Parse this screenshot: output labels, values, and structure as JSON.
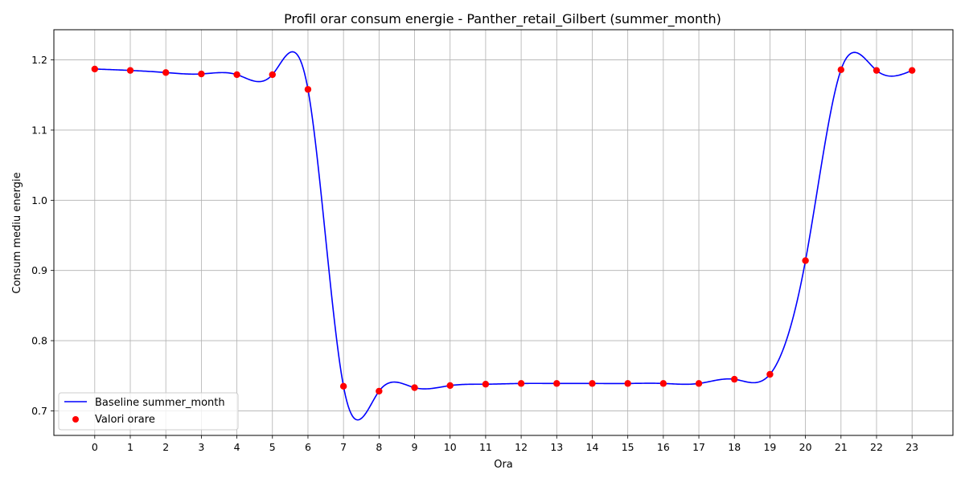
{
  "chart_data": {
    "type": "line",
    "title": "Profil orar consum energie - Panther_retail_Gilbert (summer_month)",
    "xlabel": "Ora",
    "ylabel": "Consum mediu energie",
    "x": [
      0,
      1,
      2,
      3,
      4,
      5,
      6,
      7,
      8,
      9,
      10,
      11,
      12,
      13,
      14,
      15,
      16,
      17,
      18,
      19,
      20,
      21,
      22,
      23
    ],
    "x_ticks": [
      "0",
      "1",
      "2",
      "3",
      "4",
      "5",
      "6",
      "7",
      "8",
      "9",
      "10",
      "11",
      "12",
      "13",
      "14",
      "15",
      "16",
      "17",
      "18",
      "19",
      "20",
      "21",
      "22",
      "23"
    ],
    "xlim": [
      -1.15,
      24.15
    ],
    "ylim": [
      0.665,
      1.243
    ],
    "y_ticks": [
      0.7,
      0.8,
      0.9,
      1.0,
      1.1,
      1.2
    ],
    "y_tick_labels": [
      "0.7",
      "0.8",
      "0.9",
      "1.0",
      "1.1",
      "1.2"
    ],
    "grid": true,
    "legend_position": "lower-left",
    "series": [
      {
        "name": "Baseline summer_month",
        "kind": "line",
        "color": "#0000ff",
        "values": [
          1.187,
          1.185,
          1.182,
          1.18,
          1.179,
          1.179,
          1.158,
          0.735,
          0.728,
          0.733,
          0.736,
          0.738,
          0.739,
          0.739,
          0.739,
          0.739,
          0.739,
          0.739,
          0.745,
          0.752,
          0.914,
          1.186,
          1.185,
          1.185
        ]
      },
      {
        "name": "Valori orare",
        "kind": "scatter",
        "color": "#ff0000",
        "values": [
          1.187,
          1.185,
          1.182,
          1.18,
          1.179,
          1.179,
          1.158,
          0.735,
          0.728,
          0.733,
          0.736,
          0.738,
          0.739,
          0.739,
          0.739,
          0.739,
          0.739,
          0.739,
          0.745,
          0.752,
          0.914,
          1.186,
          1.185,
          1.185
        ]
      }
    ]
  }
}
